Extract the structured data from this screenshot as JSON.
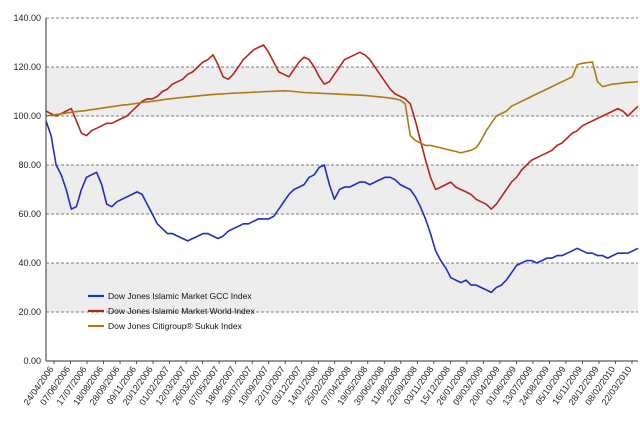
{
  "chart_data": {
    "type": "line",
    "title": "",
    "xlabel": "",
    "ylabel": "",
    "ylim": [
      0,
      140
    ],
    "y_ticks": [
      "0.00",
      "20.00",
      "40.00",
      "60.00",
      "80.00",
      "100.00",
      "120.00",
      "140.00"
    ],
    "x_tick_labels": [
      "24/04/2006",
      "07/06/2006",
      "17/07/2006",
      "18/08/2006",
      "28/09/2006",
      "09/11/2006",
      "20/12/2006",
      "01/02/2007",
      "12/03/2007",
      "26/03/2007",
      "07/05/2007",
      "18/06/2007",
      "30/07/2007",
      "10/09/2007",
      "22/10/2007",
      "03/12/2007",
      "14/01/2008",
      "25/02/2008",
      "07/04/2008",
      "19/05/2008",
      "30/06/2008",
      "11/08/2008",
      "22/09/2008",
      "03/11/2008",
      "15/12/2008",
      "26/01/2009",
      "09/03/2009",
      "20/04/2009",
      "01/06/2009",
      "13/07/2009",
      "24/08/2009",
      "05/10/2009",
      "16/11/2009",
      "28/12/2009",
      "08/02/2010",
      "22/03/2010"
    ],
    "grid": "horizontal dashed lines at 20, 60, 100, 140; shaded bands between gridlines",
    "legend_position": "lower-left inside plot",
    "series": [
      {
        "name": "Dow Jones Islamic Market GCC Index",
        "color": "#1f2fbf",
        "values": [
          98,
          92,
          80,
          76,
          70,
          62,
          63,
          70,
          75,
          76,
          77,
          72,
          64,
          63,
          65,
          66,
          67,
          68,
          69,
          68,
          64,
          60,
          56,
          54,
          52,
          52,
          51,
          50,
          49,
          50,
          51,
          52,
          52,
          51,
          50,
          51,
          53,
          54,
          55,
          56,
          56,
          57,
          58,
          58,
          58,
          59,
          62,
          65,
          68,
          70,
          71,
          72,
          75,
          76,
          79,
          80,
          72,
          66,
          70,
          71,
          71,
          72,
          73,
          73,
          72,
          73,
          74,
          75,
          75,
          74,
          72,
          71,
          70,
          67,
          63,
          58,
          52,
          45,
          41,
          38,
          34,
          33,
          32,
          33,
          31,
          31,
          30,
          29,
          28,
          30,
          31,
          33,
          36,
          39,
          40,
          41,
          41,
          40,
          41,
          42,
          42,
          43,
          43,
          44,
          45,
          46,
          45,
          44,
          44,
          43,
          43,
          42,
          43,
          44,
          44,
          44,
          45,
          46
        ]
      },
      {
        "name": "Dow Jones Islamic Market World Index",
        "color": "#b7261a",
        "values": [
          102,
          101,
          100,
          101,
          102,
          103,
          98,
          93,
          92,
          94,
          95,
          96,
          97,
          97,
          98,
          99,
          100,
          102,
          104,
          106,
          107,
          107,
          108,
          110,
          111,
          113,
          114,
          115,
          117,
          118,
          120,
          122,
          123,
          125,
          121,
          116,
          115,
          117,
          120,
          123,
          125,
          127,
          128,
          129,
          126,
          122,
          118,
          117,
          116,
          119,
          122,
          124,
          123,
          120,
          116,
          113,
          114,
          117,
          120,
          123,
          124,
          125,
          126,
          125,
          123,
          120,
          117,
          114,
          111,
          109,
          108,
          107,
          105,
          98,
          90,
          82,
          75,
          70,
          71,
          72,
          73,
          71,
          70,
          69,
          68,
          66,
          65,
          64,
          62,
          64,
          67,
          70,
          73,
          75,
          78,
          80,
          82,
          83,
          84,
          85,
          86,
          88,
          89,
          91,
          93,
          94,
          96,
          97,
          98,
          99,
          100,
          101,
          102,
          103,
          102,
          100,
          102,
          104
        ]
      },
      {
        "name": "Dow Jones Citigroup® Sukuk Index",
        "color": "#b07a12",
        "values": [
          100,
          100.3,
          100.6,
          100.9,
          101.2,
          101.5,
          101.8,
          102,
          102.3,
          102.6,
          102.9,
          103.2,
          103.5,
          103.8,
          104.1,
          104.4,
          104.6,
          104.9,
          105.2,
          105.5,
          105.8,
          106,
          106.3,
          106.6,
          106.9,
          107.1,
          107.4,
          107.6,
          107.8,
          108,
          108.2,
          108.4,
          108.6,
          108.8,
          108.9,
          109,
          109.2,
          109.3,
          109.4,
          109.5,
          109.6,
          109.7,
          109.8,
          109.9,
          110,
          110.1,
          110.2,
          110.3,
          110.2,
          110,
          109.8,
          109.6,
          109.5,
          109.4,
          109.3,
          109.2,
          109.1,
          109,
          108.9,
          108.8,
          108.7,
          108.6,
          108.5,
          108.4,
          108.2,
          108,
          107.8,
          107.6,
          107.3,
          107,
          106.5,
          105,
          92,
          90,
          89,
          88,
          88,
          87.5,
          87,
          86.5,
          86,
          85.5,
          85,
          85.5,
          86,
          87,
          90,
          94,
          97,
          100,
          101,
          102,
          104,
          105,
          106,
          107,
          108,
          109,
          110,
          111,
          112,
          113,
          114,
          115,
          116,
          121,
          121.5,
          121.8,
          122,
          114,
          112,
          112.5,
          113,
          113.2,
          113.5,
          113.7,
          113.8,
          114
        ]
      }
    ]
  }
}
